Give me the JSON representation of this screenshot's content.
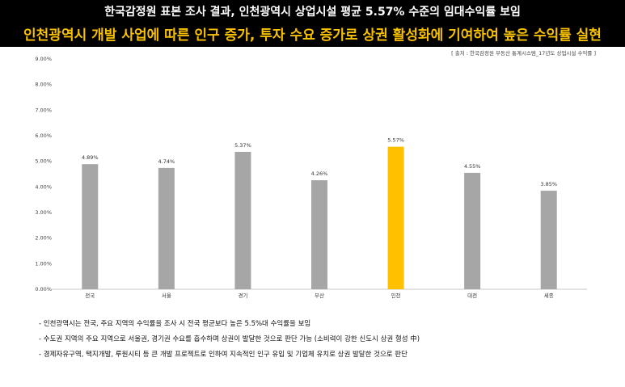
{
  "header": {
    "title": "한국감정원 표본 조사 결과, 인천광역시 상업시설 평균 5.57% 수준의 임대수익률 보임",
    "subtitle": "인천광역시 개발 사업에 따른 인구 증가, 투자 수요 증가로 상권 활성화에 기여하여 높은 수익률 실현"
  },
  "source": "[ 출처 : 한국감정원 부동산 통계시스템_17년도 상업시설 수익률 ]",
  "colors": {
    "default_bar": "#a6a6a6",
    "highlight_bar": "#ffc000",
    "header_bg": "#000000",
    "subtitle": "#f7c100"
  },
  "chart_data": {
    "type": "bar",
    "categories": [
      "전국",
      "서울",
      "경기",
      "부산",
      "인천",
      "대전",
      "세종"
    ],
    "values": [
      4.89,
      4.74,
      5.37,
      4.26,
      5.57,
      4.55,
      3.85
    ],
    "value_labels": [
      "4.89%",
      "4.74%",
      "5.37%",
      "4.26%",
      "5.57%",
      "4.55%",
      "3.85%"
    ],
    "highlight_index": 4,
    "ylim": [
      0,
      9
    ],
    "yticks": [
      "0.00%",
      "1.00%",
      "2.00%",
      "3.00%",
      "4.00%",
      "5.00%",
      "6.00%",
      "7.00%",
      "8.00%",
      "9.00%"
    ],
    "grid": false,
    "xlabel": "",
    "ylabel": ""
  },
  "notes": [
    "인천광역시는 전국, 주요 지역의 수익률을 조사 시 전국 평균보다 높은 5.5%대 수익률을 보임",
    "수도권 지역의 주요 지역으로 서울권, 경기권 수요를 흡수하며 상권이 발달한 것으로 판단 가능 (소비력이 강한 신도시 상권 형성 中)",
    "경제자유구역, 택지개발, 루원시티 등 큰 개발 프로젝트로 인하여 지속적인 인구 유입 및 기업체 유치로 상권 발달한 것으로 판단"
  ]
}
